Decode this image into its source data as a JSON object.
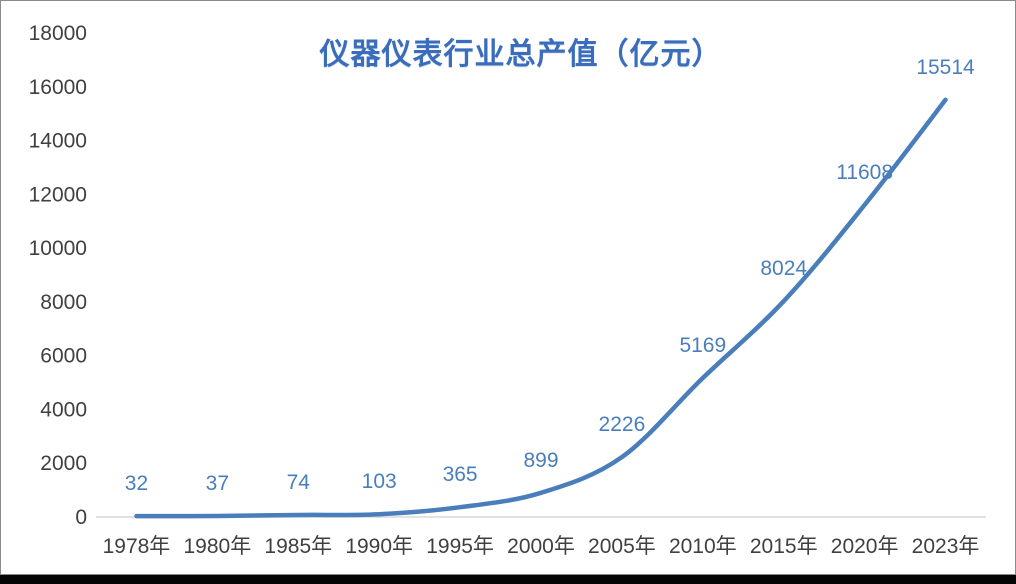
{
  "chart_data": {
    "type": "line",
    "title": "仪器仪表行业总产值（亿元）",
    "categories": [
      "1978年",
      "1980年",
      "1985年",
      "1990年",
      "1995年",
      "2000年",
      "2005年",
      "2010年",
      "2015年",
      "2020年",
      "2023年"
    ],
    "values": [
      32,
      37,
      74,
      103,
      365,
      899,
      2226,
      5169,
      8024,
      11608,
      15514
    ],
    "data_labels": [
      "32",
      "37",
      "74",
      "103",
      "365",
      "899",
      "2226",
      "5169",
      "8024",
      "11608",
      "15514"
    ],
    "ylim": [
      0,
      18000
    ],
    "ytick_step": 2000,
    "ytick_labels": [
      "0",
      "2000",
      "4000",
      "6000",
      "8000",
      "10000",
      "12000",
      "14000",
      "16000",
      "18000"
    ],
    "grid": "off",
    "legend": "none",
    "smoothed_line": true,
    "colors": {
      "line": "#4A7EBB",
      "data_label": "#4A7EBB",
      "title": "#3A6EBD",
      "axis_text": "#404040",
      "axis_line": "#D9D9D9",
      "frame_border": "#8A8A8A",
      "bottom_bar": "#050505",
      "background": "#FFFFFF"
    }
  }
}
